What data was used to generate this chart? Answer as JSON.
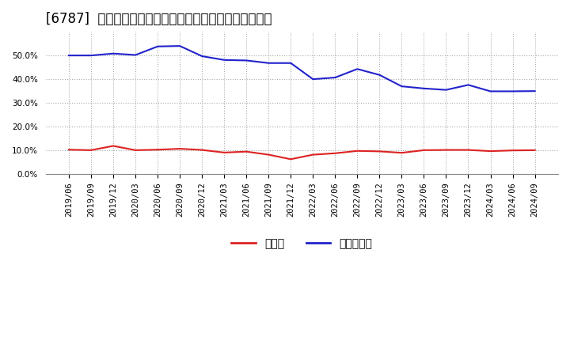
{
  "title": "[6787]  現預金、有利子負債の総資産に対する比率の推移",
  "x_labels": [
    "2019/06",
    "2019/09",
    "2019/12",
    "2020/03",
    "2020/06",
    "2020/09",
    "2020/12",
    "2021/03",
    "2021/06",
    "2021/09",
    "2021/12",
    "2022/03",
    "2022/06",
    "2022/09",
    "2022/12",
    "2023/03",
    "2023/06",
    "2023/09",
    "2023/12",
    "2024/03",
    "2024/06",
    "2024/09"
  ],
  "cash": [
    0.103,
    0.101,
    0.119,
    0.101,
    0.103,
    0.107,
    0.102,
    0.091,
    0.095,
    0.082,
    0.063,
    0.082,
    0.088,
    0.098,
    0.096,
    0.09,
    0.101,
    0.102,
    0.102,
    0.097,
    0.1,
    0.101
  ],
  "debt": [
    0.5,
    0.5,
    0.508,
    0.502,
    0.538,
    0.54,
    0.497,
    0.481,
    0.479,
    0.468,
    0.468,
    0.4,
    0.407,
    0.443,
    0.418,
    0.37,
    0.361,
    0.355,
    0.376,
    0.349,
    0.349,
    0.35
  ],
  "cash_color": "#dd2222",
  "debt_color": "#2222cc",
  "bg_color": "#ffffff",
  "plot_bg_color": "#ffffff",
  "grid_color": "#aaaaaa",
  "ylim": [
    0.0,
    0.6
  ],
  "yticks": [
    0.0,
    0.1,
    0.2,
    0.3,
    0.4,
    0.5
  ],
  "legend_cash": "現預金",
  "legend_debt": "有利子負債",
  "title_fontsize": 12,
  "axis_fontsize": 7.5,
  "legend_fontsize": 10
}
